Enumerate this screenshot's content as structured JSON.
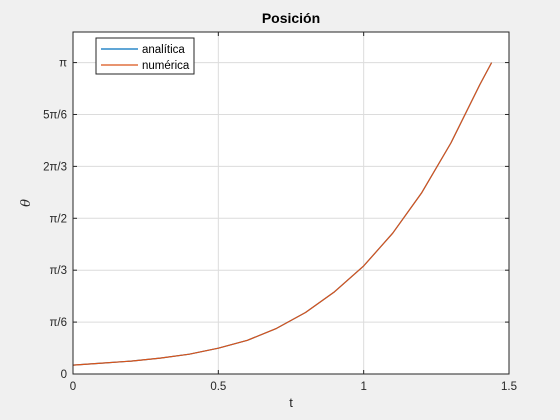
{
  "chart_data": {
    "type": "line",
    "title": "Posición",
    "xlabel": "t",
    "ylabel": "θ",
    "xlim": [
      0,
      1.5
    ],
    "ylim": [
      0,
      3.45
    ],
    "grid": true,
    "legend_position": "top-left",
    "x_ticks": [
      {
        "value": 0,
        "label": "0"
      },
      {
        "value": 0.5,
        "label": "0.5"
      },
      {
        "value": 1,
        "label": "1"
      },
      {
        "value": 1.5,
        "label": "1.5"
      }
    ],
    "y_ticks": [
      {
        "value": 0,
        "label": "0"
      },
      {
        "value": 0.5236,
        "label": "π/6"
      },
      {
        "value": 1.0472,
        "label": "π/3"
      },
      {
        "value": 1.5708,
        "label": "π/2"
      },
      {
        "value": 2.0944,
        "label": "2π/3"
      },
      {
        "value": 2.618,
        "label": "5π/6"
      },
      {
        "value": 3.1416,
        "label": "π"
      }
    ],
    "series": [
      {
        "name": "analítica",
        "color": "#0072BD",
        "x": [
          0,
          0.1,
          0.2,
          0.3,
          0.4,
          0.5,
          0.6,
          0.7,
          0.8,
          0.9,
          1.0,
          1.1,
          1.2,
          1.3,
          1.4,
          1.44
        ],
        "y": [
          0.09,
          0.11,
          0.13,
          0.16,
          0.2,
          0.26,
          0.34,
          0.46,
          0.62,
          0.83,
          1.09,
          1.42,
          1.83,
          2.33,
          2.92,
          3.1416
        ]
      },
      {
        "name": "numérica",
        "color": "#D95319",
        "x": [
          0,
          0.1,
          0.2,
          0.3,
          0.4,
          0.5,
          0.6,
          0.7,
          0.8,
          0.9,
          1.0,
          1.1,
          1.2,
          1.3,
          1.4,
          1.44
        ],
        "y": [
          0.09,
          0.11,
          0.13,
          0.16,
          0.2,
          0.26,
          0.34,
          0.46,
          0.62,
          0.83,
          1.09,
          1.42,
          1.83,
          2.33,
          2.92,
          3.1416
        ]
      }
    ]
  }
}
